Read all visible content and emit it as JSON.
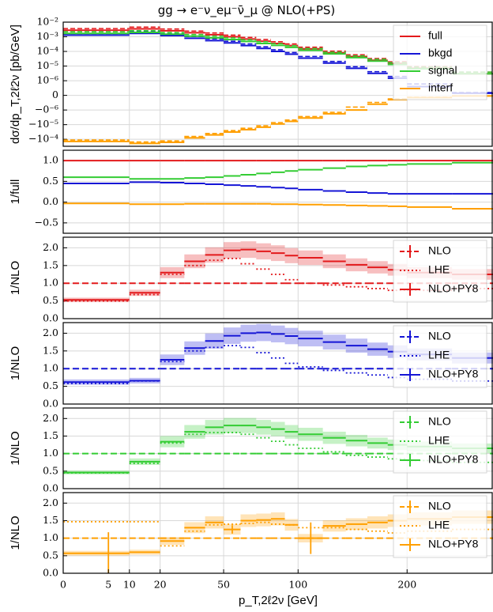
{
  "title": "gg → e⁻ν_eμ⁻ν̄_μ @ NLO(+PS)",
  "xlabel": "p_T,2ℓ2ν [GeV]",
  "colors": {
    "full": "#e31a1c",
    "bkgd": "#1515d6",
    "signal": "#33cc33",
    "interf": "#ff9f00",
    "grid": "#d8d8d8"
  },
  "chart_data": [
    {
      "type": "line",
      "panel": "main",
      "ylabel": "dσ/dp_T,2ℓ2ν [pb/GeV]",
      "yscale": "symlog",
      "yticks": [
        "10⁻²",
        "10⁻³",
        "10⁻⁴",
        "10⁻⁵",
        "10⁻⁶",
        "0",
        "−0⁻⁶",
        "−10⁻⁵",
        "−10⁻⁴"
      ],
      "legend": {
        "position": "right",
        "entries": [
          "full",
          "bkgd",
          "signal",
          "interf"
        ]
      },
      "x_edges": [
        0,
        10,
        20,
        30,
        40,
        50,
        60,
        70,
        80,
        90,
        100,
        120,
        140,
        160,
        180,
        200,
        250,
        300
      ],
      "series": [
        {
          "name": "full",
          "values": [
            0.0028,
            0.0035,
            0.0026,
            0.0019,
            0.0014,
            0.001,
            0.0007,
            0.0005,
            0.00035,
            0.00025,
            0.00015,
            8e-05,
            4.5e-05,
            2.5e-05,
            1.5e-05,
            7e-06,
            3e-06
          ]
        },
        {
          "name": "bkgd",
          "values": [
            0.0013,
            0.0017,
            0.0012,
            0.0008,
            0.00055,
            0.00038,
            0.00025,
            0.00016,
            0.0001,
            6.5e-05,
            3.5e-05,
            1.6e-05,
            7e-06,
            3.2e-06,
            1.5e-06,
            6e-07,
            1.5e-07
          ]
        },
        {
          "name": "signal",
          "values": [
            0.0017,
            0.002,
            0.0015,
            0.0011,
            0.00085,
            0.00065,
            0.00048,
            0.00035,
            0.00026,
            0.00019,
            0.00012,
            6.8e-05,
            3.8e-05,
            2.2e-05,
            1.3e-05,
            6.5e-06,
            3e-06
          ]
        },
        {
          "name": "interf",
          "values": [
            -0.00014,
            -0.00019,
            -0.00016,
            -8e-05,
            -5e-05,
            -3.2e-05,
            -2.2e-05,
            -1.5e-05,
            -9e-06,
            -6e-06,
            -3.5e-06,
            -1.8e-06,
            -1e-06,
            -6e-07,
            -3e-07,
            -1.5e-07,
            -4e-08
          ]
        }
      ]
    },
    {
      "type": "line",
      "panel": "ratio_full",
      "ylabel": "1/full",
      "ylim": [
        -0.75,
        1.25
      ],
      "yticks": [
        "1.0",
        "0.5",
        "0.0",
        "−0.5"
      ],
      "x_edges": [
        0,
        10,
        20,
        30,
        40,
        50,
        60,
        70,
        80,
        90,
        100,
        120,
        140,
        160,
        180,
        200,
        250,
        300
      ],
      "series": [
        {
          "name": "full",
          "values": [
            1,
            1,
            1,
            1,
            1,
            1,
            1,
            1,
            1,
            1,
            1,
            1,
            1,
            1,
            1,
            1,
            1
          ]
        },
        {
          "name": "bkgd",
          "values": [
            0.45,
            0.48,
            0.47,
            0.45,
            0.43,
            0.41,
            0.39,
            0.37,
            0.35,
            0.33,
            0.3,
            0.27,
            0.24,
            0.22,
            0.2,
            0.2,
            0.2
          ]
        },
        {
          "name": "signal",
          "values": [
            0.6,
            0.56,
            0.56,
            0.58,
            0.6,
            0.63,
            0.66,
            0.69,
            0.72,
            0.75,
            0.78,
            0.82,
            0.86,
            0.88,
            0.9,
            0.92,
            0.95
          ]
        },
        {
          "name": "interf",
          "values": [
            -0.03,
            -0.05,
            -0.05,
            -0.04,
            -0.04,
            -0.04,
            -0.04,
            -0.04,
            -0.05,
            -0.05,
            -0.06,
            -0.07,
            -0.08,
            -0.09,
            -0.1,
            -0.12,
            -0.16
          ]
        }
      ]
    },
    {
      "type": "line",
      "panel": "ratio_nlo",
      "process": "full",
      "ylabel": "1/NLO",
      "ylim": [
        0,
        2.3
      ],
      "yticks": [
        "2.0",
        "1.5",
        "1.0",
        "0.5",
        "0.0"
      ],
      "legend": {
        "position": "right",
        "entries": [
          "NLO",
          "LHE",
          "NLO+PY8"
        ]
      },
      "x_edges": [
        0,
        10,
        20,
        30,
        40,
        50,
        60,
        70,
        80,
        90,
        100,
        120,
        140,
        160,
        180,
        200,
        250,
        300
      ],
      "series": [
        {
          "name": "NLO",
          "values": [
            1,
            1,
            1,
            1,
            1,
            1,
            1,
            1,
            1,
            1,
            1,
            1,
            1,
            1,
            1,
            1,
            1
          ]
        },
        {
          "name": "LHE",
          "values": [
            0.5,
            0.68,
            1.25,
            1.5,
            1.65,
            1.7,
            1.55,
            1.4,
            1.25,
            1.1,
            1.0,
            0.95,
            0.9,
            0.85,
            0.8,
            0.8,
            0.85
          ]
        },
        {
          "name": "NLO+PY8",
          "values": [
            0.53,
            0.73,
            1.3,
            1.62,
            1.8,
            1.93,
            1.95,
            1.9,
            1.85,
            1.78,
            1.72,
            1.62,
            1.52,
            1.45,
            1.38,
            1.3,
            1.25
          ]
        }
      ]
    },
    {
      "type": "line",
      "panel": "ratio_nlo",
      "process": "bkgd",
      "ylabel": "1/NLO",
      "ylim": [
        0,
        2.3
      ],
      "yticks": [
        "2.0",
        "1.5",
        "1.0",
        "0.5",
        "0.0"
      ],
      "legend": {
        "position": "right",
        "entries": [
          "NLO",
          "LHE",
          "NLO+PY8"
        ]
      },
      "x_edges": [
        0,
        10,
        20,
        30,
        40,
        50,
        60,
        70,
        80,
        90,
        100,
        120,
        140,
        160,
        180,
        200,
        250,
        300
      ],
      "series": [
        {
          "name": "NLO",
          "values": [
            1,
            1,
            1,
            1,
            1,
            1,
            1,
            1,
            1,
            1,
            1,
            1,
            1,
            1,
            1,
            1,
            1
          ]
        },
        {
          "name": "LHE",
          "values": [
            0.58,
            0.65,
            1.2,
            1.5,
            1.6,
            1.65,
            1.6,
            1.45,
            1.3,
            1.15,
            1.05,
            0.95,
            0.88,
            0.82,
            0.75,
            0.7,
            0.65
          ]
        },
        {
          "name": "NLO+PY8",
          "values": [
            0.62,
            0.66,
            1.25,
            1.58,
            1.78,
            1.93,
            2.0,
            2.02,
            1.98,
            1.92,
            1.85,
            1.75,
            1.65,
            1.55,
            1.48,
            1.4,
            1.3
          ]
        }
      ]
    },
    {
      "type": "line",
      "panel": "ratio_nlo",
      "process": "signal",
      "ylabel": "1/NLO",
      "ylim": [
        0,
        2.3
      ],
      "yticks": [
        "2.0",
        "1.5",
        "1.0",
        "0.5",
        "0.0"
      ],
      "legend": {
        "position": "right",
        "entries": [
          "NLO",
          "LHE",
          "NLO+PY8"
        ]
      },
      "x_edges": [
        0,
        10,
        20,
        30,
        40,
        50,
        60,
        70,
        80,
        90,
        100,
        120,
        140,
        160,
        180,
        200,
        250,
        300
      ],
      "series": [
        {
          "name": "NLO",
          "values": [
            1,
            1,
            1,
            1,
            1,
            1,
            1,
            1,
            1,
            1,
            1,
            1,
            1,
            1,
            1,
            1,
            1
          ]
        },
        {
          "name": "LHE",
          "values": [
            0.45,
            0.72,
            1.3,
            1.55,
            1.6,
            1.6,
            1.55,
            1.45,
            1.35,
            1.25,
            1.15,
            1.05,
            0.95,
            0.9,
            0.85,
            0.8,
            0.75
          ]
        },
        {
          "name": "NLO+PY8",
          "values": [
            0.46,
            0.77,
            1.34,
            1.62,
            1.75,
            1.8,
            1.8,
            1.75,
            1.7,
            1.62,
            1.55,
            1.45,
            1.37,
            1.3,
            1.25,
            1.2,
            1.15
          ]
        }
      ]
    },
    {
      "type": "line",
      "panel": "ratio_nlo",
      "process": "interf",
      "ylabel": "1/NLO",
      "ylim": [
        0,
        2.3
      ],
      "yticks": [
        "2.0",
        "1.5",
        "1.0",
        "0.5",
        "0.0"
      ],
      "legend": {
        "position": "right",
        "entries": [
          "NLO",
          "LHE",
          "NLO+PY8"
        ]
      },
      "x_edges": [
        0,
        10,
        20,
        30,
        40,
        50,
        60,
        70,
        80,
        90,
        100,
        120,
        140,
        160,
        180,
        200,
        250,
        300
      ],
      "series": [
        {
          "name": "NLO",
          "values": [
            1,
            1,
            1,
            1,
            1,
            1,
            1,
            1,
            1,
            1,
            1,
            1,
            1,
            1,
            1,
            1,
            1
          ]
        },
        {
          "name": "LHE",
          "values": [
            1.47,
            1.47,
            0.78,
            1.2,
            1.38,
            1.4,
            1.42,
            1.45,
            1.4,
            1.38,
            1.3,
            1.3,
            1.25,
            1.2,
            1.15,
            1.2,
            1.25
          ]
        },
        {
          "name": "NLO+PY8",
          "values": [
            0.57,
            0.6,
            0.92,
            1.3,
            1.45,
            1.25,
            1.5,
            1.52,
            1.55,
            1.38,
            1.0,
            1.35,
            1.4,
            1.45,
            1.5,
            1.55,
            1.6
          ]
        }
      ]
    }
  ],
  "xticks": [
    "0",
    "5",
    "10",
    "20",
    "50",
    "100",
    "200"
  ]
}
